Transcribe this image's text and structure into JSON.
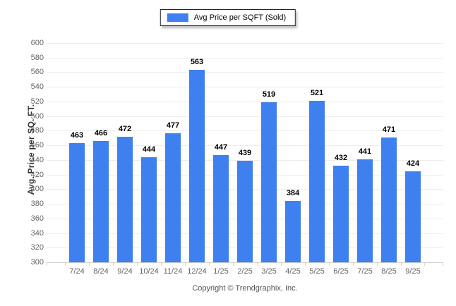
{
  "chart_data": {
    "type": "bar",
    "legend_label": "Avg Price per SQFT (Sold)",
    "categories": [
      "7/24",
      "8/24",
      "9/24",
      "10/24",
      "11/24",
      "12/24",
      "1/25",
      "2/25",
      "3/25",
      "4/25",
      "5/25",
      "6/25",
      "7/25",
      "8/25",
      "9/25"
    ],
    "values": [
      463,
      466,
      472,
      444,
      477,
      563,
      447,
      439,
      519,
      384,
      521,
      432,
      441,
      471,
      424
    ],
    "title": "",
    "xlabel": "",
    "ylabel": "Avg. Price per SQ. FT.",
    "ylim": [
      300,
      600
    ],
    "yticks": [
      300,
      320,
      340,
      360,
      380,
      400,
      420,
      440,
      460,
      480,
      500,
      520,
      540,
      560,
      580,
      600
    ],
    "grid": true,
    "legend_position": "top-center",
    "bar_color": "#3E80EF",
    "gridline_color": "#ededed",
    "axis_line_color": "#cfcfcf",
    "tick_label_color": "#666666",
    "value_label_color": "#000000"
  },
  "footer": {
    "copyright": "Copyright © Trendgraphix, Inc."
  }
}
